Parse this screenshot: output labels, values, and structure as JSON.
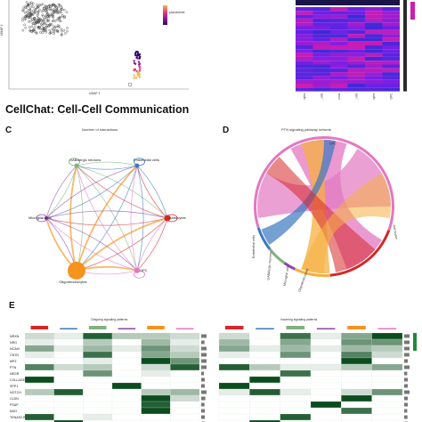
{
  "umap": {
    "x_label": "UMAP 1",
    "y_label": "UMAP 2",
    "legend_title": "pseudotime",
    "colors": {
      "cells": "#1a1a1a",
      "gradient": [
        "#2b0a66",
        "#8e1a8c",
        "#e0457a",
        "#f3b34a"
      ]
    }
  },
  "heatmap_top": {
    "colors": {
      "low": "#3a2bd6",
      "mid": "#7a1ee6",
      "high": "#d01cb0"
    },
    "rows": [
      "",
      "",
      "",
      "",
      "",
      "",
      "",
      "",
      "",
      "",
      "",
      "",
      "",
      "",
      "",
      "",
      "",
      "",
      "",
      "",
      "",
      ""
    ],
    "columns": [
      "Astrocytes",
      "Endothelial_cells",
      "GABAergic_neurons",
      "Microglial_cells",
      "Oligodendrocytes",
      "OPC"
    ]
  },
  "section_title": "CellChat: Cell-Cell Communication",
  "panel_c": {
    "letter": "C",
    "title": "Number of interactions",
    "nodes": [
      {
        "name": "GABAergic neurons",
        "color": "#7fb27f"
      },
      {
        "name": "Endothelial cells",
        "color": "#3a78c2"
      },
      {
        "name": "Astrocytes",
        "color": "#d62728"
      },
      {
        "name": "OPC",
        "color": "#e377c2"
      },
      {
        "name": "Oligodendrocytes",
        "color": "#f5931e"
      },
      {
        "name": "Microglial cells",
        "color": "#8e44ad"
      }
    ]
  },
  "panel_d": {
    "letter": "D",
    "title": "PTN signaling pathway network",
    "labels": [
      "OPC",
      "Astrocytes",
      "Oligodendrocytes",
      "Microglial cells",
      "GABAergic neurons",
      "Endothelial cells"
    ],
    "colors": {
      "opc": "#e377c2",
      "astro": "#d62728",
      "oligo": "#f5b040",
      "micro": "#8e44ad",
      "gaba": "#7fb27f",
      "endo": "#3a78c2"
    }
  },
  "panel_e": {
    "letter": "E",
    "outgoing_title": "Outgoing signaling patterns",
    "incoming_title": "Incoming signaling patterns",
    "pathways": [
      "NRXN",
      "NRG",
      "NCAM",
      "CNTN",
      "MPZ",
      "PTN",
      "NEGR",
      "COLLAGEN",
      "SPP1",
      "NOTCH",
      "CLDN",
      "PSAP",
      "MAG",
      "TENASCIN",
      "LAMININ"
    ],
    "cell_colors": [
      "#d62728",
      "#3a78c2",
      "#7fb27f",
      "#8e44ad",
      "#f5931e",
      "#e377c2"
    ],
    "outgoing": [
      [
        0.2,
        0.1,
        0.9,
        0.3,
        0.3,
        0.2
      ],
      [
        0.1,
        0.0,
        0.3,
        0.0,
        0.4,
        0.1
      ],
      [
        0.5,
        0.1,
        0.4,
        0.1,
        0.6,
        0.2
      ],
      [
        0.1,
        0.0,
        0.8,
        0.0,
        0.5,
        0.3
      ],
      [
        0.0,
        0.0,
        0.1,
        0.0,
        1.0,
        0.6
      ],
      [
        0.7,
        0.2,
        0.3,
        0.0,
        0.2,
        0.9
      ],
      [
        0.0,
        0.0,
        0.6,
        0.0,
        0.1,
        0.0
      ],
      [
        1.0,
        0.0,
        0.0,
        0.0,
        0.0,
        0.0
      ],
      [
        0.0,
        0.0,
        0.0,
        1.0,
        0.0,
        0.0
      ],
      [
        0.3,
        0.9,
        0.0,
        0.0,
        0.3,
        0.4
      ],
      [
        0.0,
        0.0,
        0.0,
        0.0,
        1.0,
        0.2
      ],
      [
        0.0,
        0.0,
        0.0,
        0.0,
        0.9,
        0.0
      ],
      [
        0.0,
        0.0,
        0.0,
        0.0,
        1.0,
        0.0
      ],
      [
        0.9,
        0.0,
        0.1,
        0.0,
        0.0,
        0.0
      ],
      [
        0.0,
        1.0,
        0.0,
        0.0,
        0.0,
        0.0
      ]
    ],
    "incoming": [
      [
        0.2,
        0.0,
        0.8,
        0.1,
        0.5,
        1.0
      ],
      [
        0.4,
        0.0,
        0.5,
        0.0,
        0.6,
        0.6
      ],
      [
        0.5,
        0.1,
        0.4,
        0.1,
        0.4,
        0.3
      ],
      [
        0.1,
        0.0,
        0.6,
        0.0,
        0.7,
        0.2
      ],
      [
        0.0,
        0.0,
        0.0,
        0.0,
        1.0,
        0.0
      ],
      [
        0.9,
        0.3,
        0.1,
        0.1,
        0.3,
        0.5
      ],
      [
        0.0,
        0.0,
        0.8,
        0.0,
        0.0,
        0.0
      ],
      [
        0.0,
        1.0,
        0.0,
        0.0,
        0.0,
        0.0
      ],
      [
        1.0,
        0.0,
        0.0,
        0.0,
        0.0,
        0.0
      ],
      [
        0.1,
        0.9,
        0.1,
        0.0,
        0.2,
        0.6
      ],
      [
        0.0,
        0.0,
        0.0,
        0.0,
        1.0,
        0.0
      ],
      [
        0.0,
        0.0,
        0.0,
        1.0,
        0.0,
        0.0
      ],
      [
        0.0,
        0.0,
        0.0,
        0.0,
        0.8,
        0.0
      ],
      [
        0.0,
        0.0,
        0.9,
        0.0,
        0.0,
        0.0
      ],
      [
        0.0,
        1.0,
        0.0,
        0.0,
        0.0,
        0.0
      ]
    ]
  }
}
